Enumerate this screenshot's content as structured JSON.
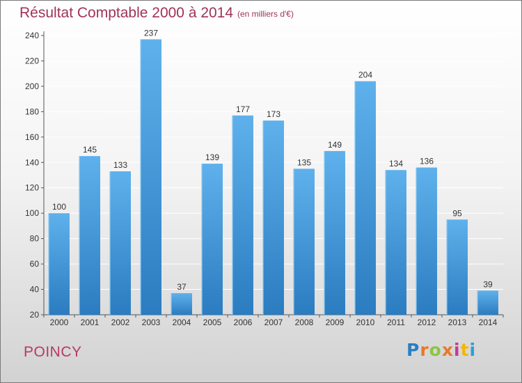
{
  "header": {
    "title": "Résultat Comptable 2000 à 2014",
    "subtitle": "(en milliers d'€)"
  },
  "footer": {
    "commune": "POINCY",
    "logo_text": "Proxiti",
    "logo_colors": [
      "#2a7fc1",
      "#e8792b",
      "#8cc63f",
      "#e8792b",
      "#c33c8e",
      "#f2b705",
      "#2a9fd6"
    ]
  },
  "colors": {
    "bar_top": "#5fb1ec",
    "bar_bottom": "#2b7cc0",
    "title": "#a0325a",
    "grid": "#ffffff",
    "axis_text": "#333333"
  },
  "chart_data": {
    "type": "bar",
    "title": "Résultat Comptable 2000 à 2014",
    "subtitle": "(en milliers d'€)",
    "xlabel": "",
    "ylabel": "",
    "ylim": [
      20,
      240
    ],
    "yticks": [
      20,
      40,
      60,
      80,
      100,
      120,
      140,
      160,
      180,
      200,
      220,
      240
    ],
    "grid": true,
    "categories": [
      "2000",
      "2001",
      "2002",
      "2003",
      "2004",
      "2005",
      "2006",
      "2007",
      "2008",
      "2009",
      "2010",
      "2011",
      "2012",
      "2013",
      "2014"
    ],
    "values": [
      100,
      145,
      133,
      237,
      37,
      139,
      177,
      173,
      135,
      149,
      204,
      134,
      136,
      95,
      39
    ]
  }
}
